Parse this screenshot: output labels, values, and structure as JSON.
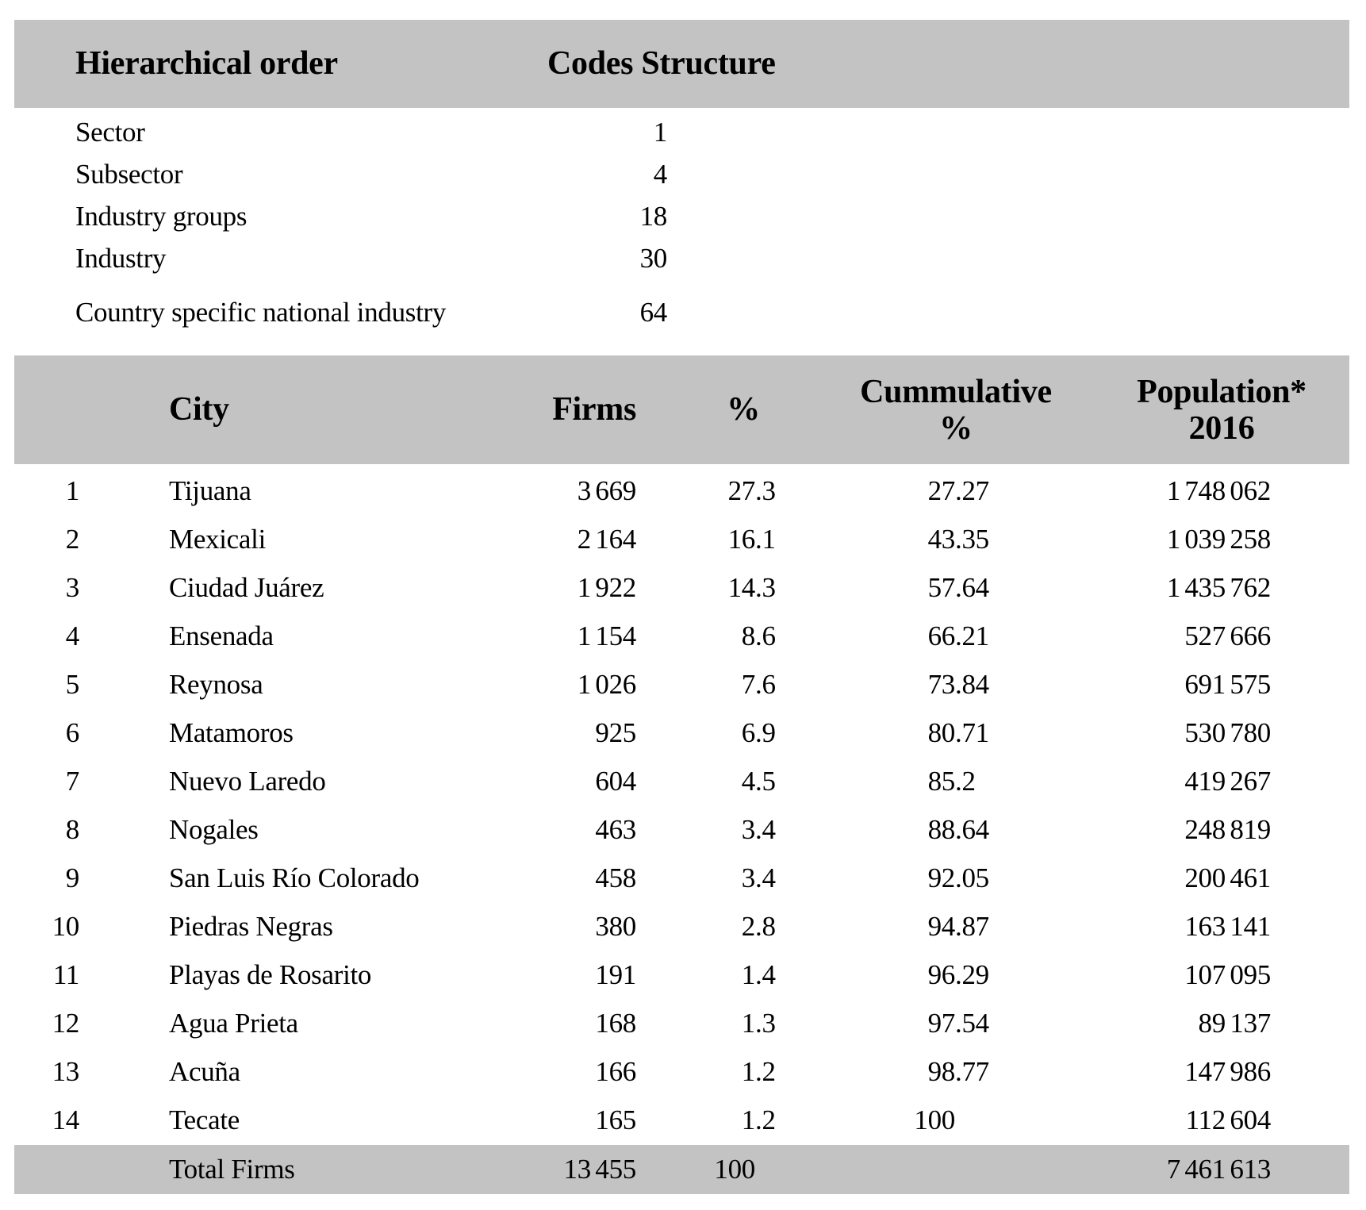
{
  "colors": {
    "band": "#c3c3c3",
    "text": "#000000",
    "page_bg": "#ffffff"
  },
  "codes_table": {
    "header": {
      "hierarchical_order": "Hierarchical order",
      "codes_structure": "Codes Structure"
    },
    "rows": [
      {
        "label": "Sector",
        "value": "1"
      },
      {
        "label": "Subsector",
        "value": "4"
      },
      {
        "label": "Industry groups",
        "value": "18"
      },
      {
        "label": "Industry",
        "value": "30"
      },
      {
        "label": "Country specific national industry",
        "value": "64"
      }
    ]
  },
  "city_table": {
    "header": {
      "city": "City",
      "firms": "Firms",
      "pct": "%",
      "cumulative_line1": "Cummulative",
      "cumulative_line2": "%",
      "population_line1": "Population*",
      "population_line2": "2016"
    },
    "rows": [
      {
        "rank": "1",
        "city": "Tijuana",
        "firms": "3 669",
        "pct": "27.3",
        "cumulative": "27.27",
        "population": "1 748 062"
      },
      {
        "rank": "2",
        "city": "Mexicali",
        "firms": "2 164",
        "pct": "16.1",
        "cumulative": "43.35",
        "population": "1 039 258"
      },
      {
        "rank": "3",
        "city": "Ciudad Juárez",
        "firms": "1 922",
        "pct": "14.3",
        "cumulative": "57.64",
        "population": "1 435 762"
      },
      {
        "rank": "4",
        "city": "Ensenada",
        "firms": "1 154",
        "pct": "8.6",
        "cumulative": "66.21",
        "population": "527 666"
      },
      {
        "rank": "5",
        "city": "Reynosa",
        "firms": "1 026",
        "pct": "7.6",
        "cumulative": "73.84",
        "population": "691 575"
      },
      {
        "rank": "6",
        "city": "Matamoros",
        "firms": "925",
        "pct": "6.9",
        "cumulative": "80.71",
        "population": "530 780"
      },
      {
        "rank": "7",
        "city": "Nuevo Laredo",
        "firms": "604",
        "pct": "4.5",
        "cumulative": "85.2",
        "population": "419 267"
      },
      {
        "rank": "8",
        "city": "Nogales",
        "firms": "463",
        "pct": "3.4",
        "cumulative": "88.64",
        "population": "248 819"
      },
      {
        "rank": "9",
        "city": "San Luis Río Colorado",
        "firms": "458",
        "pct": "3.4",
        "cumulative": "92.05",
        "population": "200 461"
      },
      {
        "rank": "10",
        "city": "Piedras Negras",
        "firms": "380",
        "pct": "2.8",
        "cumulative": "94.87",
        "population": "163 141"
      },
      {
        "rank": "11",
        "city": "Playas de Rosarito",
        "firms": "191",
        "pct": "1.4",
        "cumulative": "96.29",
        "population": "107 095"
      },
      {
        "rank": "12",
        "city": "Agua Prieta",
        "firms": "168",
        "pct": "1.3",
        "cumulative": "97.54",
        "population": "89 137"
      },
      {
        "rank": "13",
        "city": "Acuña",
        "firms": "166",
        "pct": "1.2",
        "cumulative": "98.77",
        "population": "147 986"
      },
      {
        "rank": "14",
        "city": "Tecate",
        "firms": "165",
        "pct": "1.2",
        "cumulative": "100",
        "population": "112 604"
      }
    ],
    "total": {
      "label": "Total Firms",
      "firms": "13 455",
      "pct": "100",
      "cumulative": "",
      "population": "7 461 613"
    }
  }
}
